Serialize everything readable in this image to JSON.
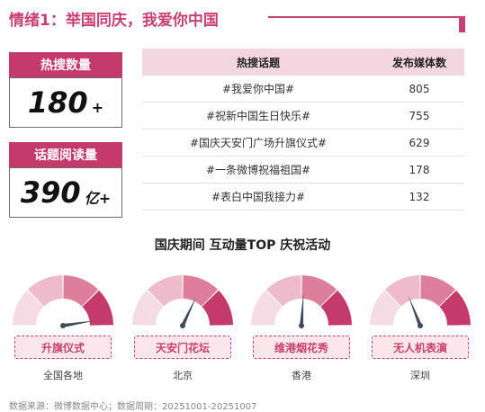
{
  "header": {
    "title": "情绪1：举国同庆，我爱你中国"
  },
  "stats": [
    {
      "label": "热搜数量",
      "value": "180",
      "suffix": "+"
    },
    {
      "label": "话题阅读量",
      "value": "390",
      "suffix": "亿+"
    }
  ],
  "table": {
    "headers": [
      "热搜话题",
      "发布媒体数"
    ],
    "rows": [
      {
        "topic": "#我爱你中国#",
        "count": "805"
      },
      {
        "topic": "#祝新中国生日快乐#",
        "count": "755"
      },
      {
        "topic": "#国庆天安门广场升旗仪式#",
        "count": "629"
      },
      {
        "topic": "#一条微博祝福祖国#",
        "count": "178"
      },
      {
        "topic": "#表白中国我接力#",
        "count": "132"
      }
    ]
  },
  "activities": {
    "title": "国庆期间 互动量TOP 庆祝活动",
    "items": [
      {
        "event": "升旗仪式",
        "location": "全国各地",
        "level": 0.95
      },
      {
        "event": "天安门花坛",
        "location": "北京",
        "level": 0.64
      },
      {
        "event": "维港烟花秀",
        "location": "香港",
        "level": 0.52
      },
      {
        "event": "无人机表演",
        "location": "深圳",
        "level": 0.38
      }
    ]
  },
  "colors": {
    "accent": "#c8406f",
    "gauge_segments": [
      "#f5dbe3",
      "#eebbcc",
      "#dd7f9c",
      "#c43a6a"
    ],
    "needle": "#3f4a5a"
  },
  "footer": {
    "source": "数据来源：微博数据中心；数据周期：20251001-20251007"
  }
}
